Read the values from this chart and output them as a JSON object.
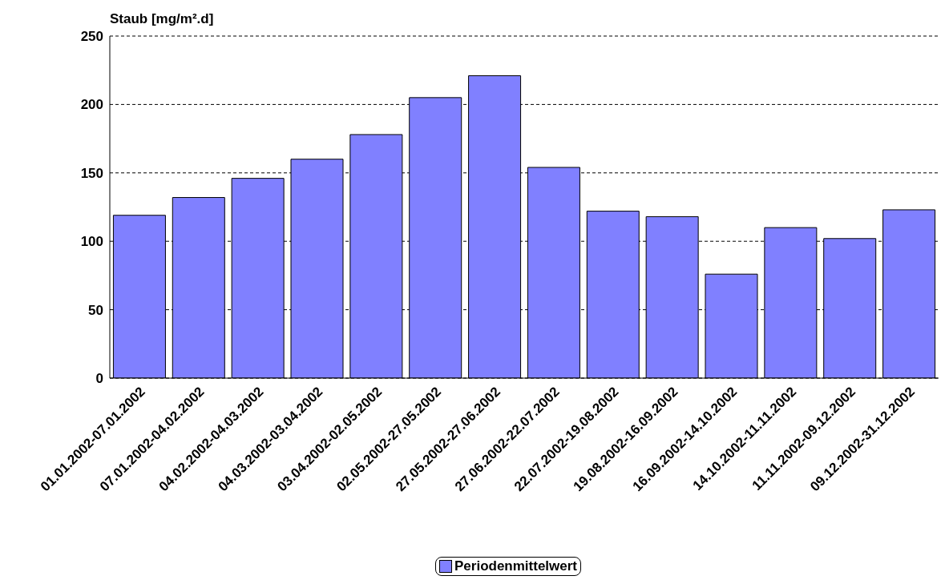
{
  "chart_data": {
    "type": "bar",
    "ylabel": "Staub [mg/m².d]",
    "categories": [
      "01.01.2002-07.01.2002",
      "07.01.2002-04.02.2002",
      "04.02.2002-04.03.2002",
      "04.03.2002-03.04.2002",
      "03.04.2002-02.05.2002",
      "02.05.2002-27.05.2002",
      "27.05.2002-27.06.2002",
      "27.06.2002-22.07.2002",
      "22.07.2002-19.08.2002",
      "19.08.2002-16.09.2002",
      "16.09.2002-14.10.2002",
      "14.10.2002-11.11.2002",
      "11.11.2002-09.12.2002",
      "09.12.2002-31.12.2002"
    ],
    "series": [
      {
        "name": "Periodenmittelwert",
        "color": "#8080ff",
        "values": [
          119,
          132,
          146,
          160,
          178,
          205,
          221,
          154,
          122,
          118,
          76,
          110,
          102,
          123
        ]
      }
    ],
    "ylim": [
      0,
      250
    ],
    "yticks": [
      0,
      50,
      100,
      150,
      200,
      250
    ],
    "grid": "y",
    "legend": "bottom"
  }
}
